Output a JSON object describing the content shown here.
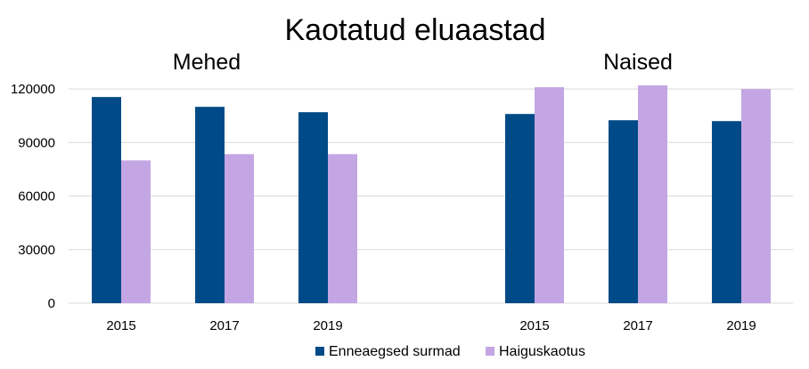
{
  "chart_data": {
    "type": "bar",
    "title": "Kaotatud eluaastad",
    "groups": [
      "Mehed",
      "Naised"
    ],
    "categories": [
      "2015",
      "2017",
      "2019",
      "2015",
      "2017",
      "2019"
    ],
    "series": [
      {
        "name": "Enneaegsed surmad",
        "color": "#004b87",
        "values": [
          115500,
          110000,
          107000,
          106000,
          102500,
          102000
        ]
      },
      {
        "name": "Haiguskaotus",
        "color": "#c3a6e3",
        "values": [
          80000,
          83500,
          83500,
          121000,
          122000,
          120000
        ]
      }
    ],
    "yticks": [
      0,
      30000,
      60000,
      90000,
      120000
    ],
    "ylim": [
      0,
      130000
    ],
    "xlabel": "",
    "ylabel": "",
    "legend_position": "bottom"
  }
}
